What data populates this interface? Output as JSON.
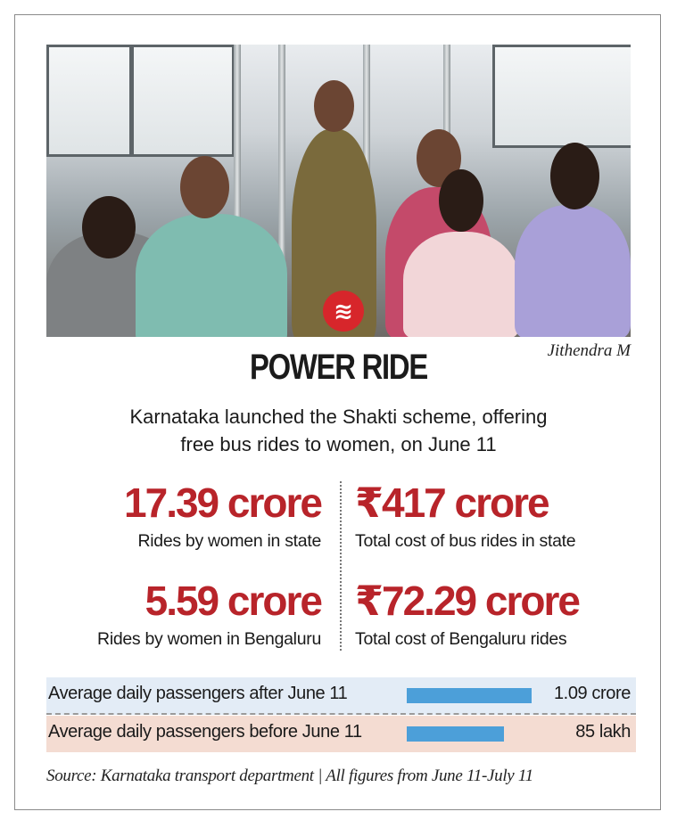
{
  "photo": {
    "credit": "Jithendra M",
    "logo": "indian-express-logo"
  },
  "headline": "POWER RIDE",
  "subtitle_line1": "Karnataka launched the Shakti scheme, offering",
  "subtitle_line2": "free bus rides to women, on June 11",
  "stats": [
    {
      "value": "17.39 crore",
      "label": "Rides by women in state"
    },
    {
      "value": "₹417 crore",
      "label": "Total cost of bus rides in state"
    },
    {
      "value": "5.59 crore",
      "label": "Rides by women in Bengaluru"
    },
    {
      "value": "₹72.29 crore",
      "label": "Total cost of Bengaluru rides"
    }
  ],
  "colors": {
    "accent_red": "#b8242a",
    "bar_blue": "#4c9fd9",
    "band_blue": "#e3ecf6",
    "band_pink": "#f4dcd2"
  },
  "chart_data": {
    "type": "bar",
    "orientation": "horizontal",
    "categories": [
      "Average daily passengers after June 11",
      "Average daily passengers before June 11"
    ],
    "values": [
      10900000,
      8500000
    ],
    "value_labels": [
      "1.09 crore",
      "85 lakh"
    ],
    "grid": false
  },
  "source": "Source: Karnataka transport department | All figures from June 11-July 11"
}
